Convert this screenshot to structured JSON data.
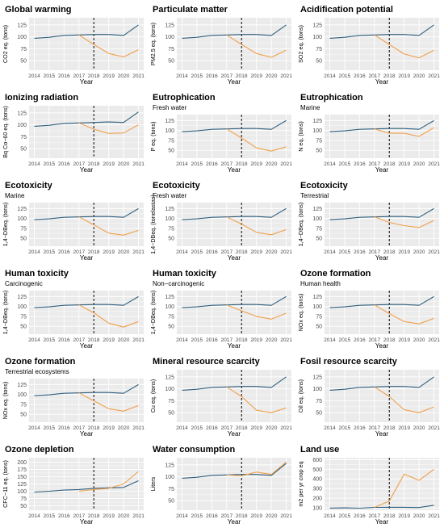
{
  "colors": {
    "baseline": "#2f5f7f",
    "scenario": "#f0a04b",
    "panel_bg": "#ebebeb",
    "grid": "#ffffff",
    "vline": "#000000"
  },
  "chart_data": [
    {
      "type": "line",
      "title": "Global warming",
      "subtitle": "",
      "ylabel": "CO2 eq. (tons)",
      "xlabel": "Year",
      "x": [
        2014,
        2015,
        2016,
        2017,
        2018,
        2019,
        2020,
        2021
      ],
      "ylim": [
        30,
        140
      ],
      "yticks": [
        50,
        75,
        100,
        125
      ],
      "vline_x": 2018,
      "grid": true,
      "series": [
        {
          "values": [
            97,
            99,
            103,
            104,
            105,
            105,
            103,
            125
          ]
        },
        {
          "x": [
            2017,
            2018,
            2019,
            2020,
            2021
          ],
          "values": [
            104,
            84,
            65,
            58,
            73
          ]
        }
      ]
    },
    {
      "type": "line",
      "title": "Particulate matter",
      "subtitle": "",
      "ylabel": "PM2.5 eq. (tons)",
      "xlabel": "Year",
      "x": [
        2014,
        2015,
        2016,
        2017,
        2018,
        2019,
        2020,
        2021
      ],
      "ylim": [
        30,
        140
      ],
      "yticks": [
        50,
        75,
        100,
        125
      ],
      "vline_x": 2018,
      "grid": true,
      "series": [
        {
          "values": [
            97,
            99,
            103,
            104,
            105,
            105,
            103,
            125
          ]
        },
        {
          "x": [
            2017,
            2018,
            2019,
            2020,
            2021
          ],
          "values": [
            104,
            84,
            65,
            57,
            72
          ]
        }
      ]
    },
    {
      "type": "line",
      "title": "Acidification potential",
      "subtitle": "",
      "ylabel": "SO2 eq. (tons)",
      "xlabel": "Year",
      "x": [
        2014,
        2015,
        2016,
        2017,
        2018,
        2019,
        2020,
        2021
      ],
      "ylim": [
        30,
        140
      ],
      "yticks": [
        50,
        75,
        100,
        125
      ],
      "vline_x": 2018,
      "grid": true,
      "series": [
        {
          "values": [
            97,
            99,
            103,
            104,
            105,
            105,
            103,
            125
          ]
        },
        {
          "x": [
            2017,
            2018,
            2019,
            2020,
            2021
          ],
          "values": [
            104,
            84,
            64,
            56,
            72
          ]
        }
      ]
    },
    {
      "type": "line",
      "title": "Ionizing radiation",
      "subtitle": "",
      "ylabel": "Bq Co−60 eq. (tons)",
      "xlabel": "Year",
      "x": [
        2014,
        2015,
        2016,
        2017,
        2018,
        2019,
        2020,
        2021
      ],
      "ylim": [
        30,
        140
      ],
      "yticks": [
        50,
        75,
        100,
        125
      ],
      "vline_x": 2018,
      "grid": true,
      "series": [
        {
          "values": [
            97,
            99,
            103,
            104,
            105,
            106,
            105,
            127
          ]
        },
        {
          "x": [
            2017,
            2018,
            2019,
            2020,
            2021
          ],
          "values": [
            104,
            91,
            82,
            83,
            100
          ]
        }
      ]
    },
    {
      "type": "line",
      "title": "Eutrophication",
      "subtitle": "Fresh water",
      "ylabel": "P eq. (tons)",
      "xlabel": "Year",
      "x": [
        2014,
        2015,
        2016,
        2017,
        2018,
        2019,
        2020,
        2021
      ],
      "ylim": [
        30,
        140
      ],
      "yticks": [
        50,
        75,
        100,
        125
      ],
      "vline_x": 2018,
      "grid": true,
      "series": [
        {
          "values": [
            97,
            99,
            103,
            104,
            105,
            105,
            103,
            125
          ]
        },
        {
          "x": [
            2017,
            2018,
            2019,
            2020,
            2021
          ],
          "values": [
            104,
            81,
            56,
            48,
            59
          ]
        }
      ]
    },
    {
      "type": "line",
      "title": "Eutrophication",
      "subtitle": "Marine",
      "ylabel": "N eq. (tons)",
      "xlabel": "Year",
      "x": [
        2014,
        2015,
        2016,
        2017,
        2018,
        2019,
        2020,
        2021
      ],
      "ylim": [
        30,
        140
      ],
      "yticks": [
        50,
        75,
        100,
        125
      ],
      "vline_x": 2018,
      "grid": true,
      "series": [
        {
          "values": [
            97,
            99,
            103,
            104,
            105,
            105,
            103,
            125
          ]
        },
        {
          "x": [
            2017,
            2018,
            2019,
            2020,
            2021
          ],
          "values": [
            104,
            93,
            93,
            85,
            107
          ]
        }
      ]
    },
    {
      "type": "line",
      "title": "Ecotoxicity",
      "subtitle": "Marine",
      "ylabel": "1,4−DBeq. (tons)",
      "xlabel": "Year",
      "x": [
        2014,
        2015,
        2016,
        2017,
        2018,
        2019,
        2020,
        2021
      ],
      "ylim": [
        30,
        140
      ],
      "yticks": [
        50,
        75,
        100,
        125
      ],
      "vline_x": 2018,
      "grid": true,
      "series": [
        {
          "values": [
            97,
            99,
            103,
            104,
            105,
            105,
            103,
            125
          ]
        },
        {
          "x": [
            2017,
            2018,
            2019,
            2020,
            2021
          ],
          "values": [
            104,
            84,
            63,
            58,
            70
          ]
        }
      ]
    },
    {
      "type": "line",
      "title": "Ecotoxicity",
      "subtitle": "Fresh water",
      "ylabel": "1,4−DBeq. (tonelastas)",
      "xlabel": "Year",
      "x": [
        2014,
        2015,
        2016,
        2017,
        2018,
        2019,
        2020,
        2021
      ],
      "ylim": [
        30,
        140
      ],
      "yticks": [
        50,
        75,
        100,
        125
      ],
      "vline_x": 2018,
      "grid": true,
      "series": [
        {
          "values": [
            97,
            99,
            103,
            104,
            105,
            105,
            103,
            125
          ]
        },
        {
          "x": [
            2017,
            2018,
            2019,
            2020,
            2021
          ],
          "values": [
            104,
            86,
            65,
            59,
            72
          ]
        }
      ]
    },
    {
      "type": "line",
      "title": "Ecotoxicity",
      "subtitle": "Terrestrial",
      "ylabel": "1,4−DBeq. (tons)",
      "xlabel": "Year",
      "x": [
        2014,
        2015,
        2016,
        2017,
        2018,
        2019,
        2020,
        2021
      ],
      "ylim": [
        30,
        140
      ],
      "yticks": [
        50,
        75,
        100,
        125
      ],
      "vline_x": 2018,
      "grid": true,
      "series": [
        {
          "values": [
            97,
            99,
            103,
            104,
            105,
            105,
            103,
            125
          ]
        },
        {
          "x": [
            2017,
            2018,
            2019,
            2020,
            2021
          ],
          "values": [
            104,
            90,
            82,
            77,
            95
          ]
        }
      ]
    },
    {
      "type": "line",
      "title": "Human toxicity",
      "subtitle": "Carcinogenic",
      "ylabel": "1,4−DBeq. (tons)",
      "xlabel": "Year",
      "x": [
        2014,
        2015,
        2016,
        2017,
        2018,
        2019,
        2020,
        2021
      ],
      "ylim": [
        30,
        140
      ],
      "yticks": [
        50,
        75,
        100,
        125
      ],
      "vline_x": 2018,
      "grid": true,
      "series": [
        {
          "values": [
            97,
            99,
            103,
            104,
            105,
            105,
            103,
            125
          ]
        },
        {
          "x": [
            2017,
            2018,
            2019,
            2020,
            2021
          ],
          "values": [
            104,
            84,
            58,
            48,
            62
          ]
        }
      ]
    },
    {
      "type": "line",
      "title": "Human toxicity",
      "subtitle": "Non−carcinogenic",
      "ylabel": "1,4−DBeq. (tons)",
      "xlabel": "Year",
      "x": [
        2014,
        2015,
        2016,
        2017,
        2018,
        2019,
        2020,
        2021
      ],
      "ylim": [
        30,
        140
      ],
      "yticks": [
        50,
        75,
        100,
        125
      ],
      "vline_x": 2018,
      "grid": true,
      "series": [
        {
          "values": [
            97,
            99,
            103,
            104,
            105,
            105,
            103,
            125
          ]
        },
        {
          "x": [
            2017,
            2018,
            2019,
            2020,
            2021
          ],
          "values": [
            104,
            89,
            75,
            68,
            83
          ]
        }
      ]
    },
    {
      "type": "line",
      "title": "Ozone formation",
      "subtitle": "Human health",
      "ylabel": "NOx eq. (tons)",
      "xlabel": "Year",
      "x": [
        2014,
        2015,
        2016,
        2017,
        2018,
        2019,
        2020,
        2021
      ],
      "ylim": [
        30,
        140
      ],
      "yticks": [
        50,
        75,
        100,
        125
      ],
      "vline_x": 2018,
      "grid": true,
      "series": [
        {
          "values": [
            97,
            99,
            103,
            104,
            105,
            105,
            103,
            125
          ]
        },
        {
          "x": [
            2017,
            2018,
            2019,
            2020,
            2021
          ],
          "values": [
            104,
            82,
            62,
            56,
            70
          ]
        }
      ]
    },
    {
      "type": "line",
      "title": "Ozone formation",
      "subtitle": "Terrestrial ecosystems",
      "ylabel": "NOx eq. (tons)",
      "xlabel": "Year",
      "x": [
        2014,
        2015,
        2016,
        2017,
        2018,
        2019,
        2020,
        2021
      ],
      "ylim": [
        30,
        140
      ],
      "yticks": [
        50,
        75,
        100,
        125
      ],
      "vline_x": 2018,
      "grid": true,
      "series": [
        {
          "values": [
            97,
            99,
            103,
            104,
            105,
            105,
            103,
            125
          ]
        },
        {
          "x": [
            2017,
            2018,
            2019,
            2020,
            2021
          ],
          "values": [
            104,
            84,
            64,
            58,
            72
          ]
        }
      ]
    },
    {
      "type": "line",
      "title": "Mineral resource scarcity",
      "subtitle": "",
      "ylabel": "Cu eq. (tons)",
      "xlabel": "Year",
      "x": [
        2014,
        2015,
        2016,
        2017,
        2018,
        2019,
        2020,
        2021
      ],
      "ylim": [
        30,
        140
      ],
      "yticks": [
        50,
        75,
        100,
        125
      ],
      "vline_x": 2018,
      "grid": true,
      "series": [
        {
          "values": [
            97,
            99,
            103,
            104,
            105,
            105,
            103,
            125
          ]
        },
        {
          "x": [
            2017,
            2018,
            2019,
            2020,
            2021
          ],
          "values": [
            104,
            84,
            55,
            50,
            60
          ]
        }
      ]
    },
    {
      "type": "line",
      "title": "Fosil resource scarcity",
      "subtitle": "",
      "ylabel": "Oil eq. (tons)",
      "xlabel": "Year",
      "x": [
        2014,
        2015,
        2016,
        2017,
        2018,
        2019,
        2020,
        2021
      ],
      "ylim": [
        30,
        140
      ],
      "yticks": [
        50,
        75,
        100,
        125
      ],
      "vline_x": 2018,
      "grid": true,
      "series": [
        {
          "values": [
            97,
            99,
            103,
            104,
            105,
            105,
            103,
            125
          ]
        },
        {
          "x": [
            2017,
            2018,
            2019,
            2020,
            2021
          ],
          "values": [
            104,
            84,
            56,
            50,
            62
          ]
        }
      ]
    },
    {
      "type": "line",
      "title": "Ozone depletion",
      "subtitle": "",
      "ylabel": "CFC−11 eq. (tons)",
      "xlabel": "Year",
      "x": [
        2014,
        2015,
        2016,
        2017,
        2018,
        2019,
        2020,
        2021
      ],
      "ylim": [
        35,
        215
      ],
      "yticks": [
        50,
        75,
        100,
        125,
        150,
        175,
        200
      ],
      "vline_x": 2018,
      "grid": true,
      "series": [
        {
          "values": [
            97,
            100,
            104,
            106,
            110,
            112,
            113,
            136
          ]
        },
        {
          "x": [
            2017,
            2018,
            2019,
            2020,
            2021
          ],
          "values": [
            100,
            106,
            110,
            125,
            168
          ]
        }
      ]
    },
    {
      "type": "line",
      "title": "Water consumption",
      "subtitle": "",
      "ylabel": "Liters",
      "xlabel": "Year",
      "x": [
        2014,
        2015,
        2016,
        2017,
        2018,
        2019,
        2020,
        2021
      ],
      "ylim": [
        30,
        140
      ],
      "yticks": [
        50,
        75,
        100,
        125
      ],
      "vline_x": 2018,
      "grid": true,
      "series": [
        {
          "values": [
            97,
            99,
            103,
            104,
            105,
            105,
            103,
            128
          ]
        },
        {
          "x": [
            2017,
            2018,
            2019,
            2020,
            2021
          ],
          "values": [
            104,
            102,
            110,
            105,
            131
          ]
        }
      ]
    },
    {
      "type": "line",
      "title": "Land use",
      "subtitle": "",
      "ylabel": "m2 per yr crop eq",
      "xlabel": "Year",
      "x": [
        2014,
        2015,
        2016,
        2017,
        2018,
        2019,
        2020,
        2021
      ],
      "ylim": [
        75,
        620
      ],
      "yticks": [
        100,
        200,
        300,
        400,
        500,
        600
      ],
      "vline_x": 2018,
      "grid": true,
      "series": [
        {
          "values": [
            97,
            99,
            96,
            104,
            105,
            105,
            103,
            126
          ]
        },
        {
          "x": [
            2017,
            2018,
            2019,
            2020,
            2021
          ],
          "values": [
            104,
            170,
            450,
            385,
            500
          ]
        }
      ]
    }
  ]
}
